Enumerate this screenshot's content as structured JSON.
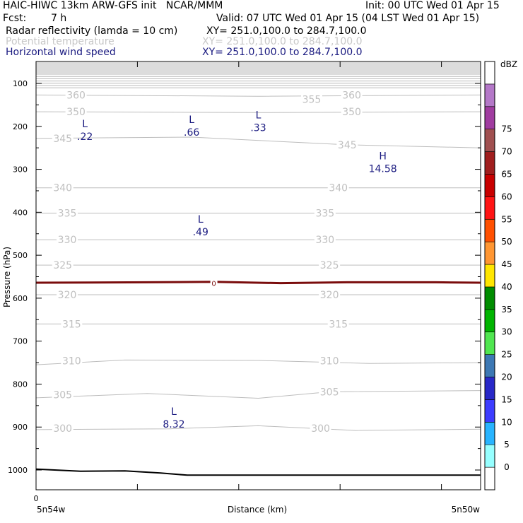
{
  "header": {
    "model": "HAIC-HIWC 13km ARW-GFS init   NCAR/MMM",
    "init": "Init: 00 UTC Wed 01 Apr 15",
    "fcst_label": "Fcst:",
    "fcst_value": "7 h",
    "valid": "Valid: 07 UTC Wed 01 Apr 15 (04 LST Wed 01 Apr 15)",
    "fields": [
      {
        "name": "Radar reflectivity (lamda = 10 cm)",
        "xy": "XY= 251.0,100.0 to 284.7,100.0",
        "color": "#000000"
      },
      {
        "name": "Potential temperature",
        "xy": "XY= 251.0,100.0 to 284.7,100.0",
        "color": "#c8c8c8"
      },
      {
        "name": "Horizontal wind speed",
        "xy": "XY= 251.0,100.0 to 284.7,100.0",
        "color": "#1a1a80"
      }
    ]
  },
  "chart_data": {
    "type": "contour",
    "xlabel": "Distance (km)",
    "ylabel": "Pressure (hPa)",
    "x_left_label": "5n54w",
    "x_right_label": "5n50w",
    "x_origin_label": "0",
    "y_ticks": [
      "100",
      "200",
      "300",
      "400",
      "500",
      "600",
      "700",
      "800",
      "900",
      "1000"
    ],
    "colorbar": {
      "unit": "dBZ",
      "levels": [
        "0",
        "5",
        "10",
        "15",
        "20",
        "25",
        "30",
        "35",
        "40",
        "45",
        "50",
        "55",
        "60",
        "65",
        "70",
        "75"
      ],
      "colors": [
        "#ffffff",
        "#96ffff",
        "#28b4ff",
        "#3c3cff",
        "#2828c8",
        "#3c78b4",
        "#50e650",
        "#00b400",
        "#008c00",
        "#ffe600",
        "#ff9632",
        "#ff5000",
        "#ff1414",
        "#c80000",
        "#a01e1e",
        "#a05050",
        "#a03ca0",
        "#b478c8",
        "#ffffff"
      ]
    },
    "theta_labels": [
      {
        "v": "360",
        "p": 127,
        "x": 0.09
      },
      {
        "v": "355",
        "p": 137,
        "x": 0.62
      },
      {
        "v": "360",
        "p": 127,
        "x": 0.71
      },
      {
        "v": "350",
        "p": 166,
        "x": 0.09
      },
      {
        "v": "350",
        "p": 166,
        "x": 0.71
      },
      {
        "v": "345",
        "p": 228,
        "x": 0.06
      },
      {
        "v": "345",
        "p": 243,
        "x": 0.7
      },
      {
        "v": "340",
        "p": 343,
        "x": 0.06
      },
      {
        "v": "340",
        "p": 343,
        "x": 0.68
      },
      {
        "v": "335",
        "p": 402,
        "x": 0.07
      },
      {
        "v": "335",
        "p": 402,
        "x": 0.65
      },
      {
        "v": "330",
        "p": 464,
        "x": 0.07
      },
      {
        "v": "330",
        "p": 464,
        "x": 0.65
      },
      {
        "v": "325",
        "p": 523,
        "x": 0.06
      },
      {
        "v": "325",
        "p": 523,
        "x": 0.66
      },
      {
        "v": "320",
        "p": 592,
        "x": 0.07
      },
      {
        "v": "320",
        "p": 592,
        "x": 0.66
      },
      {
        "v": "315",
        "p": 660,
        "x": 0.08
      },
      {
        "v": "315",
        "p": 660,
        "x": 0.68
      },
      {
        "v": "310",
        "p": 746,
        "x": 0.08
      },
      {
        "v": "310",
        "p": 746,
        "x": 0.66
      },
      {
        "v": "305",
        "p": 825,
        "x": 0.06
      },
      {
        "v": "305",
        "p": 818,
        "x": 0.66
      },
      {
        "v": "300",
        "p": 903,
        "x": 0.06
      },
      {
        "v": "300",
        "p": 903,
        "x": 0.64
      }
    ],
    "theta_lines": [
      {
        "pts": [
          [
            0,
            127
          ],
          [
            0.5,
            130
          ],
          [
            1,
            127
          ]
        ]
      },
      {
        "pts": [
          [
            0,
            166
          ],
          [
            0.5,
            168
          ],
          [
            1,
            166
          ]
        ]
      },
      {
        "pts": [
          [
            0,
            228
          ],
          [
            0.35,
            225
          ],
          [
            0.7,
            243
          ],
          [
            1,
            250
          ]
        ]
      },
      {
        "pts": [
          [
            0,
            343
          ],
          [
            1,
            343
          ]
        ]
      },
      {
        "pts": [
          [
            0,
            402
          ],
          [
            1,
            402
          ]
        ]
      },
      {
        "pts": [
          [
            0,
            464
          ],
          [
            1,
            464
          ]
        ]
      },
      {
        "pts": [
          [
            0,
            523
          ],
          [
            1,
            523
          ]
        ]
      },
      {
        "pts": [
          [
            0,
            592
          ],
          [
            1,
            592
          ]
        ]
      },
      {
        "pts": [
          [
            0,
            660
          ],
          [
            1,
            660
          ]
        ]
      },
      {
        "pts": [
          [
            0,
            755
          ],
          [
            0.2,
            744
          ],
          [
            0.5,
            745
          ],
          [
            0.75,
            752
          ],
          [
            1,
            750
          ]
        ]
      },
      {
        "pts": [
          [
            0,
            832
          ],
          [
            0.25,
            822
          ],
          [
            0.5,
            833
          ],
          [
            0.66,
            818
          ],
          [
            1,
            815
          ]
        ]
      },
      {
        "pts": [
          [
            0,
            906
          ],
          [
            0.3,
            904
          ],
          [
            0.5,
            897
          ],
          [
            0.72,
            908
          ],
          [
            1,
            905
          ]
        ]
      }
    ],
    "wind_extrema": [
      {
        "type": "L",
        "value": ".22",
        "x": 0.11,
        "p": 215
      },
      {
        "type": "L",
        "value": ".66",
        "x": 0.35,
        "p": 205
      },
      {
        "type": "L",
        "value": ".33",
        "x": 0.5,
        "p": 195
      },
      {
        "type": "H",
        "value": "14.58",
        "x": 0.78,
        "p": 290
      },
      {
        "type": "L",
        "value": ".49",
        "x": 0.37,
        "p": 437
      },
      {
        "type": "L",
        "value": "8.32",
        "x": 0.31,
        "p": 885
      }
    ],
    "zero_dbz_line": {
      "label": "0",
      "pts": [
        [
          0,
          564
        ],
        [
          0.25,
          563
        ],
        [
          0.4,
          562
        ],
        [
          0.55,
          565
        ],
        [
          0.7,
          563
        ],
        [
          0.9,
          563
        ],
        [
          1,
          564
        ]
      ]
    },
    "terrain": {
      "pts": [
        [
          0,
          998
        ],
        [
          0.1,
          1003
        ],
        [
          0.2,
          1002
        ],
        [
          0.28,
          1007
        ],
        [
          0.34,
          1012
        ],
        [
          1,
          1012
        ]
      ]
    }
  }
}
